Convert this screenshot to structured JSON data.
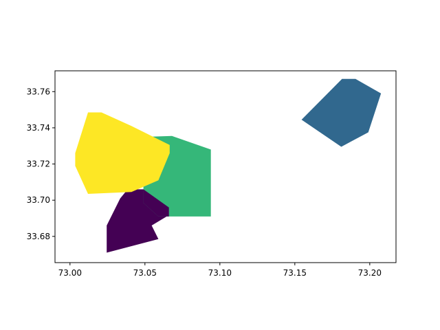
{
  "chart_data": {
    "type": "map",
    "title": "",
    "xlabel": "",
    "ylabel": "",
    "xlim": [
      72.99,
      73.2175
    ],
    "ylim": [
      33.6655,
      33.7715
    ],
    "grid": false,
    "legend": "none",
    "x_ticks": [
      {
        "value": 73.0,
        "label": "73.00"
      },
      {
        "value": 73.05,
        "label": "73.05"
      },
      {
        "value": 73.1,
        "label": "73.10"
      },
      {
        "value": 73.15,
        "label": "73.15"
      },
      {
        "value": 73.2,
        "label": "73.20"
      }
    ],
    "y_ticks": [
      {
        "value": 33.68,
        "label": "33.68"
      },
      {
        "value": 33.7,
        "label": "33.70"
      },
      {
        "value": 33.72,
        "label": "33.72"
      },
      {
        "value": 33.74,
        "label": "33.74"
      },
      {
        "value": 33.76,
        "label": "33.76"
      }
    ],
    "regions": [
      {
        "id": "purple",
        "color": "#440154",
        "coords": [
          [
            73.0245,
            33.671
          ],
          [
            73.0245,
            33.686
          ],
          [
            73.0335,
            33.701
          ],
          [
            73.0385,
            33.706
          ],
          [
            73.049,
            33.706
          ],
          [
            73.066,
            33.696
          ],
          [
            73.0645,
            33.691
          ],
          [
            73.0545,
            33.686
          ],
          [
            73.059,
            33.6785
          ],
          [
            73.0245,
            33.671
          ]
        ]
      },
      {
        "id": "blue",
        "color": "#31688e",
        "coords": [
          [
            73.1545,
            33.7445
          ],
          [
            73.1815,
            33.767
          ],
          [
            73.1905,
            33.767
          ],
          [
            73.2075,
            33.759
          ],
          [
            73.199,
            33.7375
          ],
          [
            73.181,
            33.7295
          ],
          [
            73.1545,
            33.7445
          ]
        ]
      },
      {
        "id": "green",
        "color": "#35b779",
        "coords": [
          [
            73.049,
            33.735
          ],
          [
            73.068,
            33.7355
          ],
          [
            73.094,
            33.728
          ],
          [
            73.094,
            33.691
          ],
          [
            73.059,
            33.691
          ],
          [
            73.049,
            33.6985
          ],
          [
            73.049,
            33.735
          ]
        ]
      },
      {
        "id": "yellow",
        "color": "#fde725",
        "coords": [
          [
            73.012,
            33.7485
          ],
          [
            73.021,
            33.7485
          ],
          [
            73.041,
            33.741
          ],
          [
            73.0665,
            33.7305
          ],
          [
            73.0665,
            33.726
          ],
          [
            73.059,
            33.711
          ],
          [
            73.041,
            33.7045
          ],
          [
            73.012,
            33.7035
          ],
          [
            73.0035,
            33.719
          ],
          [
            73.0035,
            33.726
          ],
          [
            73.012,
            33.7485
          ]
        ]
      },
      {
        "id": "purple-lower",
        "color": "#440154",
        "coords": [
          [
            73.049,
            33.6985
          ],
          [
            73.059,
            33.691
          ],
          [
            73.066,
            33.691
          ],
          [
            73.066,
            33.696
          ],
          [
            73.049,
            33.706
          ],
          [
            73.049,
            33.6985
          ]
        ]
      }
    ]
  }
}
